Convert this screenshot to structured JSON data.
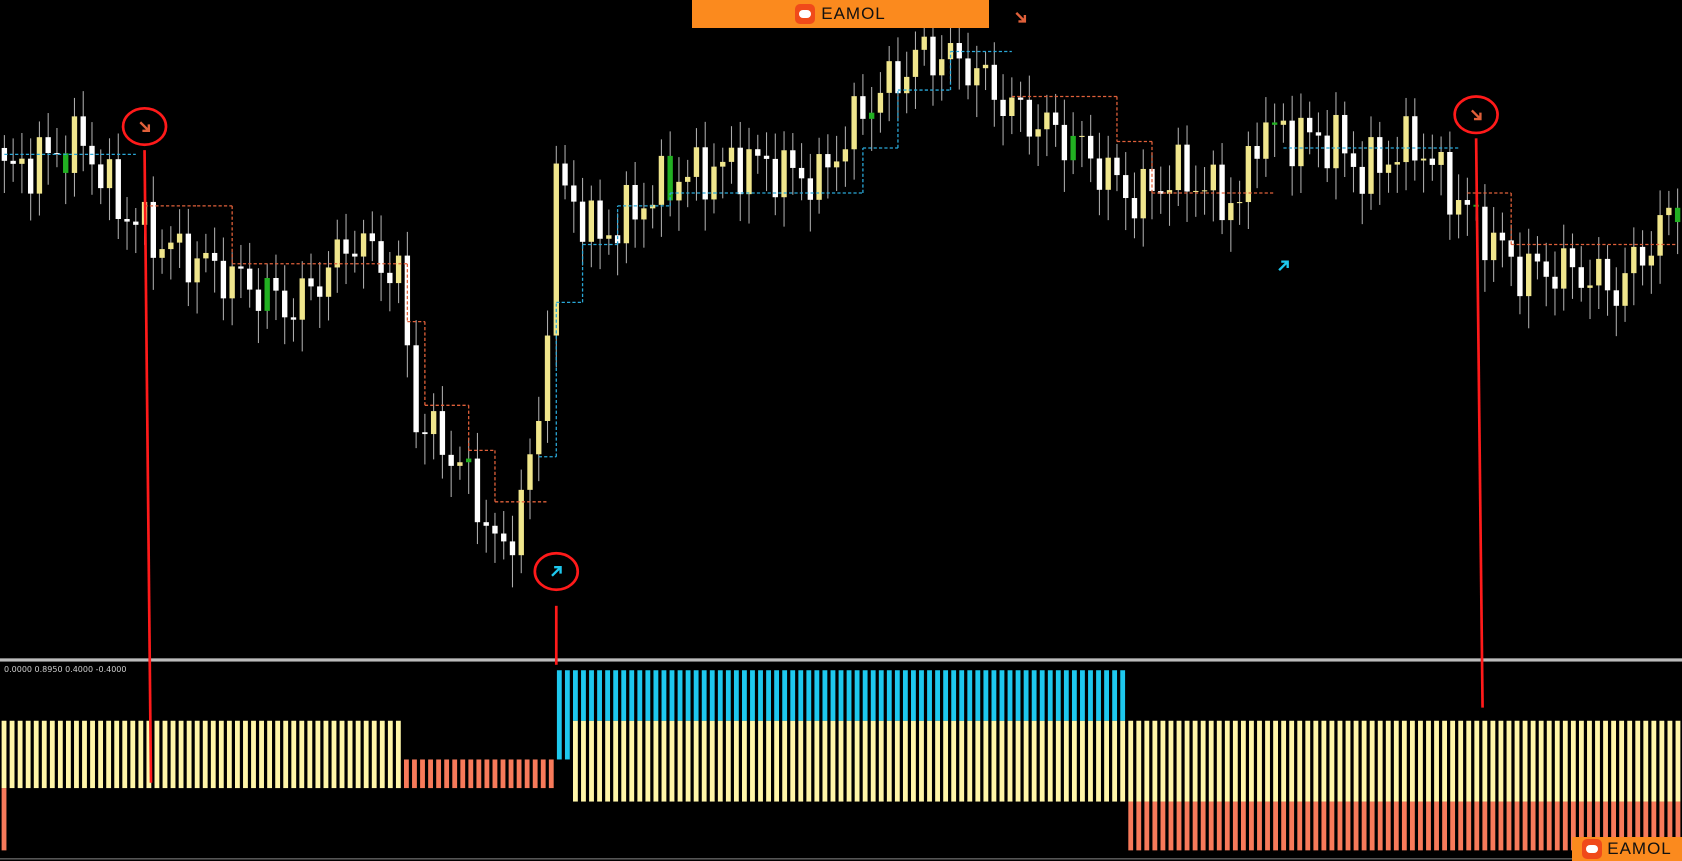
{
  "brand": {
    "name": "EAMOL",
    "color": "#fb8a1e"
  },
  "indicator_label": "0.0000 0.8950 0.4000 -0.4000",
  "colors": {
    "bull": "#f0e68c",
    "bear": "#ffffff",
    "wick": "#aaaaaa",
    "support": "#2aa8d8",
    "resistance": "#e0603a",
    "hist_yellow": "#fff6a8",
    "hist_salmon": "#f87a5a",
    "hist_cyan": "#1ec8ee",
    "annotation": "#ff1a1a"
  },
  "chart_data": {
    "type": "candlestick",
    "title": "",
    "bar_count": 192,
    "close_path": [
      [
        0,
        73
      ],
      [
        9,
        78
      ],
      [
        13,
        68
      ],
      [
        18,
        62
      ],
      [
        26,
        57
      ],
      [
        33,
        52
      ],
      [
        40,
        63
      ],
      [
        45,
        57
      ],
      [
        47,
        35
      ],
      [
        52,
        28
      ],
      [
        57,
        13
      ],
      [
        61,
        33
      ],
      [
        63,
        72
      ],
      [
        68,
        63
      ],
      [
        76,
        72
      ],
      [
        85,
        75
      ],
      [
        93,
        72
      ],
      [
        98,
        83
      ],
      [
        105,
        92
      ],
      [
        110,
        90
      ],
      [
        115,
        83
      ],
      [
        122,
        78
      ],
      [
        129,
        69
      ],
      [
        134,
        73
      ],
      [
        141,
        68
      ],
      [
        143,
        80
      ],
      [
        152,
        78
      ],
      [
        155,
        73
      ],
      [
        161,
        78
      ],
      [
        167,
        67
      ],
      [
        173,
        58
      ],
      [
        179,
        58
      ],
      [
        184,
        55
      ],
      [
        191,
        68
      ]
    ],
    "support_steps": [
      [
        0,
        15,
        76
      ],
      [
        61,
        63,
        29
      ],
      [
        63,
        66,
        53
      ],
      [
        66,
        70,
        62
      ],
      [
        70,
        76,
        68
      ],
      [
        76,
        81,
        70
      ],
      [
        81,
        98,
        70
      ],
      [
        98,
        102,
        77
      ],
      [
        102,
        108,
        86
      ],
      [
        108,
        115,
        92
      ],
      [
        146,
        166,
        77
      ]
    ],
    "resistance_steps": [
      [
        16,
        22,
        68
      ],
      [
        22,
        26,
        68
      ],
      [
        26,
        46,
        59
      ],
      [
        46,
        48,
        50
      ],
      [
        48,
        53,
        37
      ],
      [
        53,
        56,
        30
      ],
      [
        56,
        62,
        22
      ],
      [
        115,
        127,
        85
      ],
      [
        127,
        131,
        78
      ],
      [
        131,
        145,
        70
      ],
      [
        167,
        172,
        70
      ],
      [
        172,
        191,
        62
      ]
    ],
    "signals": [
      {
        "type": "sell",
        "bar": 16,
        "circled": true
      },
      {
        "type": "buy",
        "bar": 63,
        "circled": true
      },
      {
        "type": "sell",
        "bar": 168,
        "circled": true
      },
      {
        "type": "sell",
        "bar": 116,
        "circled": false
      },
      {
        "type": "buy",
        "bar": 146,
        "circled": false
      }
    ],
    "histogram": {
      "bar_count": 209,
      "segments": [
        {
          "from": 0,
          "to": 1,
          "parts": [
            [
              "salmon",
              -0.37,
              0
            ],
            [
              "yellow",
              0,
              0.4
            ]
          ]
        },
        {
          "from": 1,
          "to": 50,
          "parts": [
            [
              "yellow",
              0,
              0.4
            ]
          ]
        },
        {
          "from": 50,
          "to": 69,
          "parts": [
            [
              "salmon",
              0,
              0.17
            ]
          ]
        },
        {
          "from": 69,
          "to": 71,
          "parts": [
            [
              "cyan",
              0.17,
              0.7
            ]
          ]
        },
        {
          "from": 71,
          "to": 140,
          "parts": [
            [
              "yellow",
              -0.08,
              0.4
            ],
            [
              "cyan",
              0.4,
              0.7
            ]
          ]
        },
        {
          "from": 140,
          "to": 209,
          "parts": [
            [
              "salmon",
              -0.37,
              -0.08
            ],
            [
              "yellow",
              -0.08,
              0.4
            ]
          ]
        }
      ]
    }
  }
}
